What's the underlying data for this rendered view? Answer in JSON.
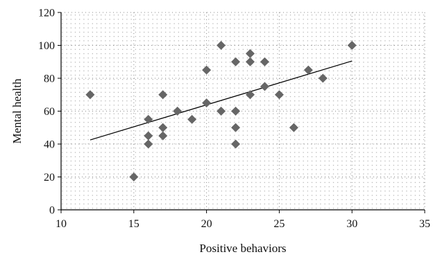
{
  "chart_data": {
    "type": "scatter",
    "title": "",
    "xlabel": "Positive behaviors",
    "ylabel": "Mental health",
    "xlim": [
      10,
      35
    ],
    "ylim": [
      0,
      120
    ],
    "xticks": [
      10,
      15,
      20,
      25,
      30,
      35
    ],
    "yticks": [
      0,
      20,
      40,
      60,
      80,
      100,
      120
    ],
    "grid": "dotted",
    "legend": "none",
    "marker": "diamond",
    "colors": {
      "marker": "#666666",
      "trendline": "#000000",
      "axis": "#000000",
      "grid": "#888888"
    },
    "points": [
      {
        "x": 12,
        "y": 70
      },
      {
        "x": 15,
        "y": 20
      },
      {
        "x": 16,
        "y": 55
      },
      {
        "x": 16,
        "y": 45
      },
      {
        "x": 16,
        "y": 40
      },
      {
        "x": 17,
        "y": 70
      },
      {
        "x": 17,
        "y": 50
      },
      {
        "x": 17,
        "y": 45
      },
      {
        "x": 18,
        "y": 60
      },
      {
        "x": 19,
        "y": 55
      },
      {
        "x": 20,
        "y": 85
      },
      {
        "x": 20,
        "y": 65
      },
      {
        "x": 21,
        "y": 100
      },
      {
        "x": 21,
        "y": 60
      },
      {
        "x": 22,
        "y": 90
      },
      {
        "x": 22,
        "y": 60
      },
      {
        "x": 22,
        "y": 50
      },
      {
        "x": 22,
        "y": 40
      },
      {
        "x": 23,
        "y": 95
      },
      {
        "x": 23,
        "y": 90
      },
      {
        "x": 23,
        "y": 70
      },
      {
        "x": 24,
        "y": 90
      },
      {
        "x": 24,
        "y": 75
      },
      {
        "x": 25,
        "y": 70
      },
      {
        "x": 26,
        "y": 50
      },
      {
        "x": 27,
        "y": 85
      },
      {
        "x": 28,
        "y": 80
      },
      {
        "x": 30,
        "y": 100
      }
    ],
    "trendline": {
      "type": "linear",
      "from": {
        "x": 12,
        "y": 42.5
      },
      "to": {
        "x": 30,
        "y": 90.5
      }
    }
  }
}
